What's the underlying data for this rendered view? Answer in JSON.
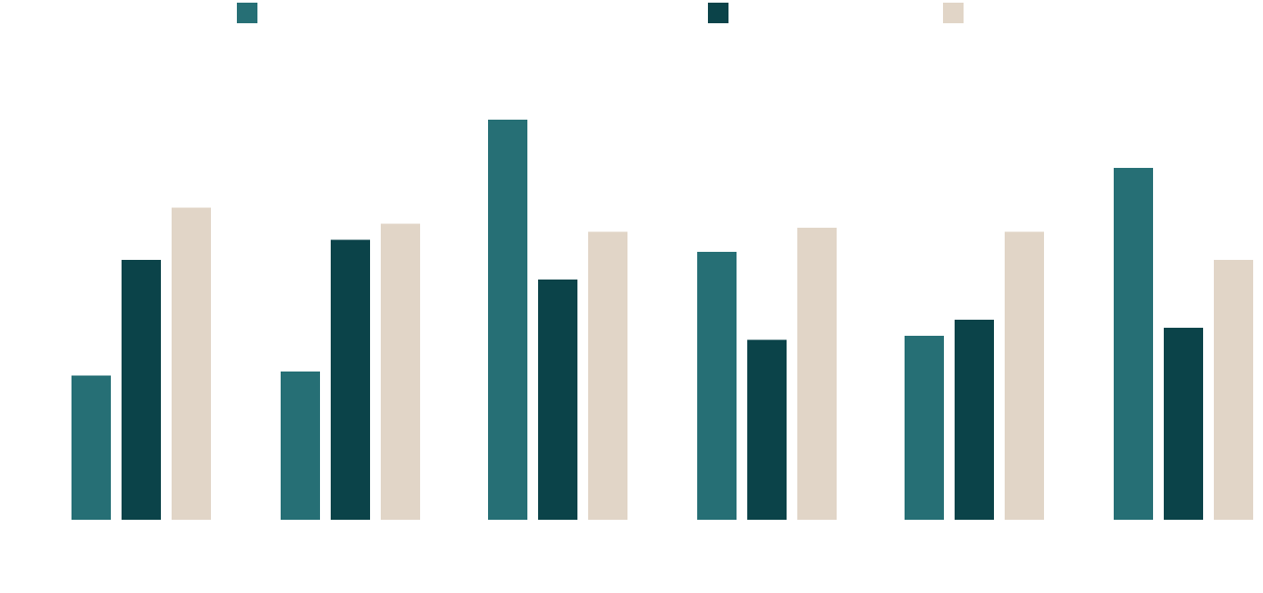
{
  "chart_data": {
    "type": "bar",
    "title": "",
    "xlabel": "",
    "ylabel": "",
    "categories": [
      "",
      "",
      "",
      "",
      "",
      ""
    ],
    "ylim": [
      0,
      100
    ],
    "grid": false,
    "legend_placement": "top",
    "series": [
      {
        "color": "#266f75",
        "values": [
          36,
          37,
          100,
          67,
          46,
          88
        ]
      },
      {
        "color": "#0b4349",
        "values": [
          65,
          70,
          60,
          45,
          50,
          48
        ]
      },
      {
        "color": "#e1d5c7",
        "values": [
          78,
          74,
          72,
          73,
          72,
          65
        ]
      }
    ]
  }
}
